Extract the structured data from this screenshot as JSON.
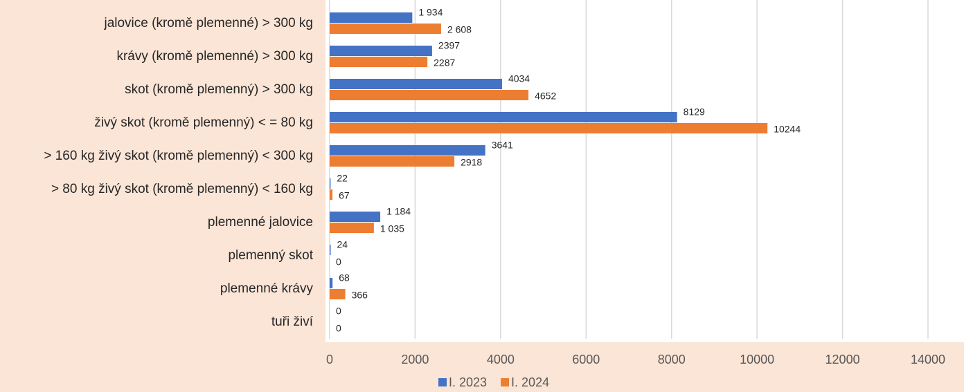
{
  "chart_data": {
    "type": "bar",
    "orientation": "horizontal",
    "categories": [
      "jalovice (kromě plemenné) > 300 kg",
      "krávy (kromě plemenné) > 300 kg",
      "skot (kromě plemenný) > 300 kg",
      "živý skot (kromě plemenný) < = 80 kg",
      "> 160 kg živý skot (kromě plemenný) < 300 kg",
      "> 80 kg živý skot (kromě plemenný) < 160 kg",
      "plemenné jalovice",
      "plemenný skot",
      "plemenné krávy",
      "tuři živí"
    ],
    "series": [
      {
        "name": "I. 2023",
        "color": "#4472c4",
        "values": [
          1934,
          2397,
          4034,
          8129,
          3641,
          22,
          1184,
          24,
          68,
          0
        ],
        "value_labels": [
          "1 934",
          "2397",
          "4034",
          "8129",
          "3641",
          "22",
          "1 184",
          "24",
          "68",
          "0"
        ]
      },
      {
        "name": "I. 2024",
        "color": "#ed7d31",
        "values": [
          2608,
          2287,
          4652,
          10244,
          2918,
          67,
          1035,
          0,
          366,
          0
        ],
        "value_labels": [
          "2 608",
          "2287",
          "4652",
          "10244",
          "2918",
          "67",
          "1 035",
          "0",
          "366",
          "0"
        ]
      }
    ],
    "xlim": [
      0,
      14000
    ],
    "xticks": [
      0,
      2000,
      4000,
      6000,
      8000,
      10000,
      12000,
      14000
    ],
    "grid": true,
    "legend": "bottom"
  }
}
